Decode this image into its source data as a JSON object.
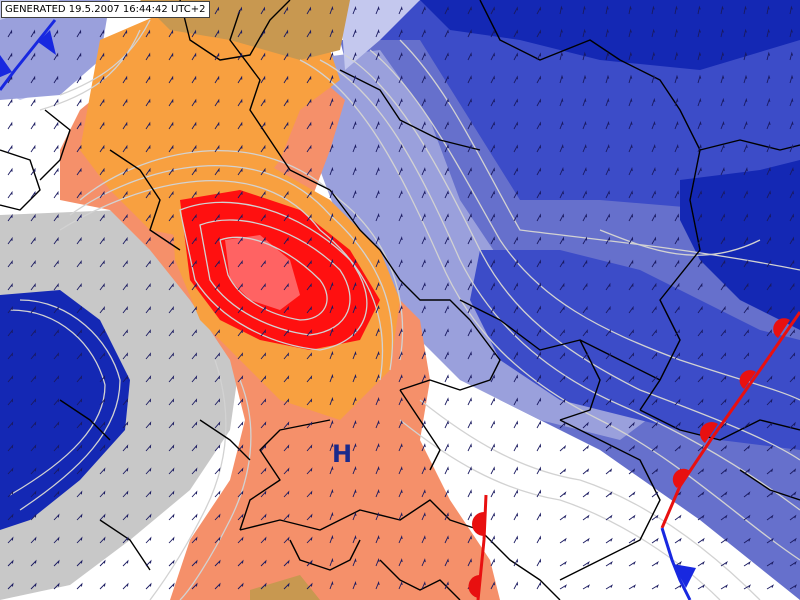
{
  "header": {
    "generated_stamp": "GENERATED 19.5.2007 16:44:42 UTC+2"
  },
  "pressure_centers": [
    {
      "label": "H",
      "type": "high"
    }
  ],
  "fronts": [
    {
      "kind": "warm",
      "color": "#e81010"
    },
    {
      "kind": "cold",
      "color": "#1828e0"
    }
  ],
  "palette": {
    "deep_blue": "#1428b4",
    "blue": "#3c4cc8",
    "mid_blue": "#6670cc",
    "light_blue": "#9aa0dc",
    "pale_blue": "#c4c8ee",
    "grey": "#c8c8c8",
    "white": "#ffffff",
    "salmon": "#f5906a",
    "orange": "#f8a040",
    "tan": "#c89850",
    "red": "#ff1010",
    "isoline": "#d2d2d2",
    "border": "#000000",
    "wind_arrow": "#1a1a60",
    "pressure_label": "#1a2a8c"
  },
  "icons": {
    "wind_barb": "wind-arrow-icon",
    "warm_front": "warm-front-icon",
    "cold_front": "cold-front-icon"
  }
}
